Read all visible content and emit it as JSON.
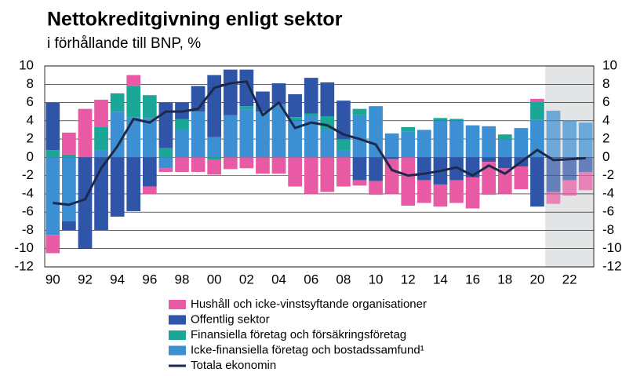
{
  "chart_data": {
    "type": "bar",
    "stacked": true,
    "title": "Nettokreditgivning enligt sektor",
    "subtitle": "i förhållande till BNP, %",
    "categories": [
      "90",
      null,
      "92",
      null,
      "94",
      null,
      "96",
      null,
      "98",
      null,
      "00",
      null,
      "02",
      null,
      "04",
      null,
      "06",
      null,
      "08",
      null,
      "10",
      null,
      "12",
      null,
      "14",
      null,
      "16",
      null,
      "18",
      null,
      "20",
      null,
      "22",
      null
    ],
    "series": [
      {
        "name": "Hushåll och icke-vinstsyftande organisationer",
        "color": "#e85aa4",
        "values": [
          -2,
          2.4,
          5.3,
          3,
          0,
          1.2,
          -0.8,
          -0.4,
          -1.6,
          -1.6,
          -1.6,
          -1.3,
          -1.2,
          -1.8,
          -1.8,
          -3.2,
          -4,
          -3.8,
          -3.2,
          -0.6,
          -1.5,
          -3.8,
          -5.3,
          -2.5,
          -2.4,
          -2.5,
          -3.4,
          -3.6,
          -2.8,
          -2.5,
          0.3,
          -1.3,
          -1.7,
          -2
        ]
      },
      {
        "name": "Offentlig sektor",
        "color": "#2f55a8",
        "values": [
          5.2,
          -1,
          -10,
          -8,
          -6.5,
          -5.9,
          -3.2,
          5,
          1.8,
          2.8,
          6.8,
          5,
          4,
          2.2,
          2.3,
          2.5,
          3.9,
          3.7,
          4.2,
          -2.5,
          -2.6,
          -0.2,
          0,
          -2.5,
          -3,
          -2.5,
          -2.2,
          -0.5,
          -1.2,
          -1,
          -5.4,
          -3.8,
          -2.5,
          -1.6
        ]
      },
      {
        "name": "Finansiella företag och försäkringsföretag",
        "color": "#1aa797",
        "values": [
          0.8,
          0.3,
          0,
          2.5,
          2,
          3.4,
          2.5,
          1,
          1.2,
          0,
          -0.3,
          0,
          0.4,
          0,
          0,
          0.4,
          0.3,
          1.5,
          1.2,
          0.7,
          0,
          0,
          0.5,
          0,
          0.3,
          0.2,
          0,
          0,
          0.5,
          0,
          2,
          0,
          0,
          0
        ]
      },
      {
        "name": "Icke-finansiella företag och bostadssamfund¹",
        "color": "#3b8fd2",
        "values": [
          -8.5,
          -7,
          0,
          0.8,
          5,
          4.4,
          4.3,
          -1.2,
          3,
          5,
          2.2,
          4.6,
          5.2,
          5,
          5.8,
          4,
          4.5,
          3,
          0.8,
          4.6,
          5.6,
          2.6,
          2.8,
          3,
          4,
          4,
          3.5,
          3.4,
          2,
          3.2,
          4.1,
          5.1,
          4,
          3.8
        ]
      },
      {
        "name": "Totala ekonomin",
        "color": "#1b2a4c",
        "type": "line",
        "values": [
          -5,
          -5.2,
          -4.6,
          -1.2,
          1.2,
          4.2,
          3.8,
          5,
          5,
          5.3,
          7.6,
          8.1,
          8.3,
          4.6,
          6,
          3.2,
          3.8,
          3.5,
          2.5,
          2,
          1.4,
          -1.4,
          -2,
          -1.8,
          -1.5,
          -1.1,
          -2,
          -0.9,
          -1.8,
          -0.5,
          0.8,
          -0.3,
          -0.2,
          -0.1
        ]
      }
    ],
    "ylim": [
      -12,
      10
    ],
    "yticks": [
      -12,
      -10,
      -8,
      -6,
      -4,
      -2,
      0,
      2,
      4,
      6,
      8,
      10
    ],
    "y2lim": [
      -12,
      10
    ],
    "y2ticks": [
      -12,
      -10,
      -8,
      -6,
      -4,
      -2,
      0,
      2,
      4,
      6,
      8,
      10
    ],
    "grid": true,
    "forecast_from_index": 31,
    "legend": "bottom"
  }
}
